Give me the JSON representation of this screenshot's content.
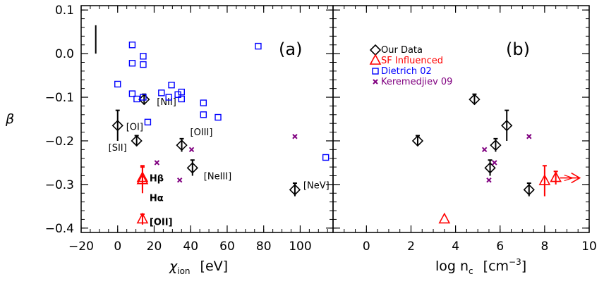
{
  "chart_data": [
    {
      "type": "scatter",
      "panel_label": "(a)",
      "xlabel_main": "χ",
      "xlabel_sub": "ion",
      "xlabel_unit": "[eV]",
      "ylabel": "β",
      "xlim": [
        -20,
        118
      ],
      "ylim": [
        -0.41,
        0.11
      ],
      "xticks": [
        -20,
        0,
        20,
        40,
        60,
        80,
        100
      ],
      "yticks": [
        -0.4,
        -0.3,
        -0.2,
        -0.1,
        0.0,
        0.1
      ],
      "ytick_labels": [
        "−0.4",
        "−0.3",
        "−0.2",
        "−0.1",
        "0.0",
        "0.1"
      ],
      "xtick_labels": [
        "−20",
        "0",
        "20",
        "40",
        "60",
        "80",
        "100"
      ],
      "typical_error_bar": {
        "x": -12,
        "y_low": -0.0,
        "y_high": 0.065
      },
      "series": [
        {
          "name": "Our Data",
          "marker": "diamond",
          "color": "#000000",
          "points": [
            {
              "x": 0,
              "y": -0.165,
              "err": 0.035,
              "label": "[OI]"
            },
            {
              "x": 10.4,
              "y": -0.2,
              "err": 0.012,
              "label": "[SII]"
            },
            {
              "x": 14.5,
              "y": -0.105,
              "err": 0.012,
              "label": "[NII]"
            },
            {
              "x": 35.1,
              "y": -0.21,
              "err": 0.015,
              "label": "[OIII]"
            },
            {
              "x": 41,
              "y": -0.262,
              "err": 0.018,
              "label": "[NeIII]"
            },
            {
              "x": 97.1,
              "y": -0.312,
              "err": 0.015,
              "label": "[NeV]"
            }
          ]
        },
        {
          "name": "SF Influenced",
          "marker": "triangle",
          "color": "#ff0000",
          "points": [
            {
              "x": 13.6,
              "y": -0.285,
              "err": 0.028,
              "label": "Hβ"
            },
            {
              "x": 13.6,
              "y": -0.29,
              "err": 0.03,
              "label": "Hα"
            },
            {
              "x": 13.6,
              "y": -0.38,
              "err": 0.012,
              "label": "[OII]"
            }
          ]
        },
        {
          "name": "Dietrich 02",
          "marker": "square",
          "color": "#0000ff",
          "points": [
            {
              "x": 0,
              "y": -0.07
            },
            {
              "x": 8,
              "y": 0.02
            },
            {
              "x": 8,
              "y": -0.022
            },
            {
              "x": 8,
              "y": -0.092
            },
            {
              "x": 14,
              "y": -0.006
            },
            {
              "x": 14,
              "y": -0.025
            },
            {
              "x": 14,
              "y": -0.1
            },
            {
              "x": 10.5,
              "y": -0.104
            },
            {
              "x": 16.5,
              "y": -0.157
            },
            {
              "x": 24,
              "y": -0.09
            },
            {
              "x": 28,
              "y": -0.1
            },
            {
              "x": 29.5,
              "y": -0.072
            },
            {
              "x": 33,
              "y": -0.094
            },
            {
              "x": 35,
              "y": -0.088
            },
            {
              "x": 35,
              "y": -0.104
            },
            {
              "x": 47,
              "y": -0.113
            },
            {
              "x": 47,
              "y": -0.14
            },
            {
              "x": 55,
              "y": -0.146
            },
            {
              "x": 77,
              "y": 0.017
            },
            {
              "x": 114,
              "y": -0.238
            }
          ]
        },
        {
          "name": "Keremedjiev 09",
          "marker": "x",
          "color": "#800080",
          "points": [
            {
              "x": 21.5,
              "y": -0.25
            },
            {
              "x": 34,
              "y": -0.29
            },
            {
              "x": 40.5,
              "y": -0.22
            },
            {
              "x": 97.1,
              "y": -0.19
            }
          ]
        }
      ]
    },
    {
      "type": "scatter",
      "panel_label": "(b)",
      "xlabel_main": "log n",
      "xlabel_sub": "c",
      "xlabel_unit": "[cm",
      "xlabel_sup": "−3",
      "xlabel_close": "]",
      "xlim": [
        -1.5,
        10
      ],
      "ylim": [
        -0.41,
        0.11
      ],
      "xticks": [
        0,
        2,
        4,
        6,
        8,
        10
      ],
      "xtick_labels": [
        "0",
        "2",
        "4",
        "6",
        "8",
        "10"
      ],
      "yticks": [
        -0.4,
        -0.3,
        -0.2,
        -0.1,
        0.0,
        0.1
      ],
      "legend": {
        "placement": "top-left",
        "entries": [
          {
            "label": "Our Data",
            "marker": "diamond",
            "color": "#000000"
          },
          {
            "label": "SF Influenced",
            "marker": "triangle",
            "color": "#ff0000"
          },
          {
            "label": "Dietrich 02",
            "marker": "square",
            "color": "#0000ff"
          },
          {
            "label": "Keremedjiev 09",
            "marker": "x",
            "color": "#800080"
          }
        ]
      },
      "series": [
        {
          "name": "Our Data",
          "marker": "diamond",
          "color": "#000000",
          "points": [
            {
              "x": 2.3,
              "y": -0.2,
              "err": 0.012
            },
            {
              "x": 4.85,
              "y": -0.105,
              "err": 0.012
            },
            {
              "x": 5.55,
              "y": -0.262,
              "err": 0.018
            },
            {
              "x": 5.8,
              "y": -0.21,
              "err": 0.015
            },
            {
              "x": 6.3,
              "y": -0.165,
              "err": 0.035
            },
            {
              "x": 7.3,
              "y": -0.312,
              "err": 0.015
            }
          ]
        },
        {
          "name": "SF Influenced",
          "marker": "triangle",
          "color": "#ff0000",
          "points": [
            {
              "x": 3.5,
              "y": -0.38,
              "err": 0.0
            },
            {
              "x": 8.0,
              "y": -0.292,
              "err": 0.035
            },
            {
              "x": 8.5,
              "y": -0.285,
              "err": 0.015,
              "lower_limit": true
            }
          ]
        },
        {
          "name": "Keremedjiev 09",
          "marker": "x",
          "color": "#800080",
          "points": [
            {
              "x": 5.3,
              "y": -0.22
            },
            {
              "x": 5.5,
              "y": -0.29
            },
            {
              "x": 5.75,
              "y": -0.25
            },
            {
              "x": 7.3,
              "y": -0.19
            }
          ]
        }
      ]
    }
  ]
}
